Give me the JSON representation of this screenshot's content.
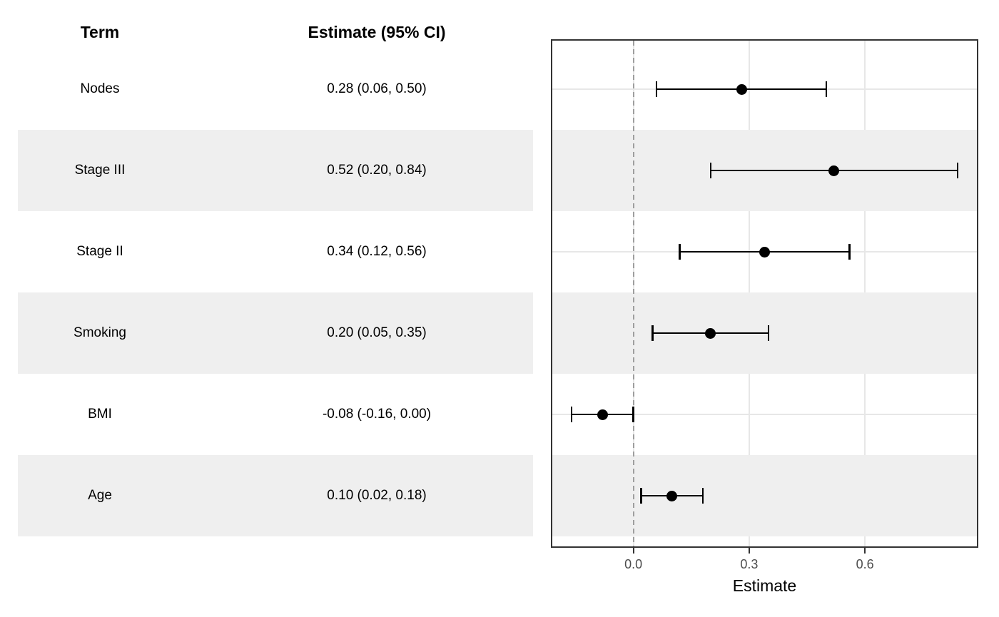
{
  "table": {
    "header": {
      "term": "Term",
      "estimate": "Estimate (95% CI)"
    },
    "rows": [
      {
        "term": "Nodes",
        "estimate_label": "0.28 (0.06, 0.50)"
      },
      {
        "term": "Stage III",
        "estimate_label": "0.52 (0.20, 0.84)"
      },
      {
        "term": "Stage II",
        "estimate_label": "0.34 (0.12, 0.56)"
      },
      {
        "term": "Smoking",
        "estimate_label": "0.20 (0.05, 0.35)"
      },
      {
        "term": "BMI",
        "estimate_label": "-0.08 (-0.16, 0.00)"
      },
      {
        "term": "Age",
        "estimate_label": "0.10 (0.02, 0.18)"
      }
    ]
  },
  "chart_data": {
    "type": "scatter",
    "subtype": "forest-plot",
    "categories": [
      "Nodes",
      "Stage III",
      "Stage II",
      "Smoking",
      "BMI",
      "Age"
    ],
    "series": [
      {
        "name": "Estimate",
        "values": [
          0.28,
          0.52,
          0.34,
          0.2,
          -0.08,
          0.1
        ]
      }
    ],
    "ci_low": [
      0.06,
      0.2,
      0.12,
      0.05,
      -0.16,
      0.02
    ],
    "ci_high": [
      0.5,
      0.84,
      0.56,
      0.35,
      0.0,
      0.18
    ],
    "xlabel": "Estimate",
    "x_ticks": [
      0.0,
      0.3,
      0.6
    ],
    "x_tick_labels": [
      "0.0",
      "0.3",
      "0.6"
    ],
    "xlim": [
      -0.21,
      0.89
    ],
    "reference_line_x": 0,
    "grid": true,
    "legend_position": "none",
    "striped_rows": [
      "Stage III",
      "Smoking",
      "Age"
    ]
  },
  "colors": {
    "stripe": "#EFEFEF",
    "gridline": "#E7E7E7",
    "panel_border": "#333333",
    "reference_line": "#9E9E9E",
    "point": "#000000",
    "ci_line": "#000000",
    "tick_mark": "#333333",
    "tick_label": "#4D4D4D",
    "text": "#000000"
  }
}
